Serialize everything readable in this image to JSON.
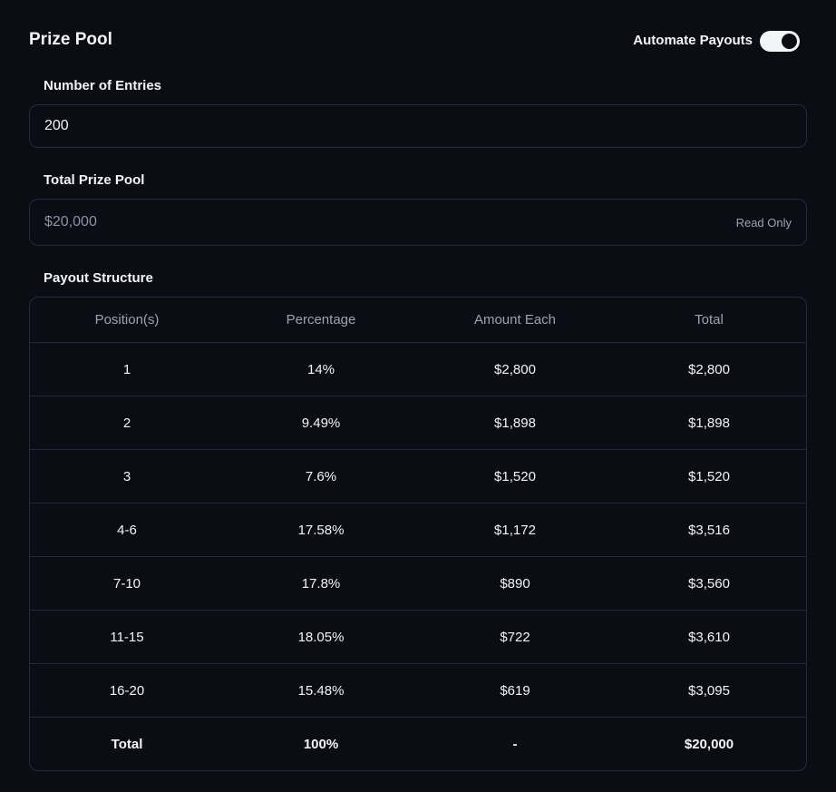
{
  "header": {
    "title": "Prize Pool",
    "toggle_label": "Automate Payouts"
  },
  "entries": {
    "label": "Number of Entries",
    "value": "200"
  },
  "prize_pool": {
    "label": "Total Prize Pool",
    "value": "$20,000",
    "badge": "Read Only"
  },
  "payout": {
    "label": "Payout Structure",
    "table": {
      "columns": [
        "Position(s)",
        "Percentage",
        "Amount Each",
        "Total"
      ],
      "rows": [
        [
          "1",
          "14%",
          "$2,800",
          "$2,800"
        ],
        [
          "2",
          "9.49%",
          "$1,898",
          "$1,898"
        ],
        [
          "3",
          "7.6%",
          "$1,520",
          "$1,520"
        ],
        [
          "4-6",
          "17.58%",
          "$1,172",
          "$3,516"
        ],
        [
          "7-10",
          "17.8%",
          "$890",
          "$3,560"
        ],
        [
          "11-15",
          "18.05%",
          "$722",
          "$3,610"
        ],
        [
          "16-20",
          "15.48%",
          "$619",
          "$3,095"
        ]
      ],
      "footer": [
        "Total",
        "100%",
        "-",
        "$20,000"
      ]
    }
  }
}
